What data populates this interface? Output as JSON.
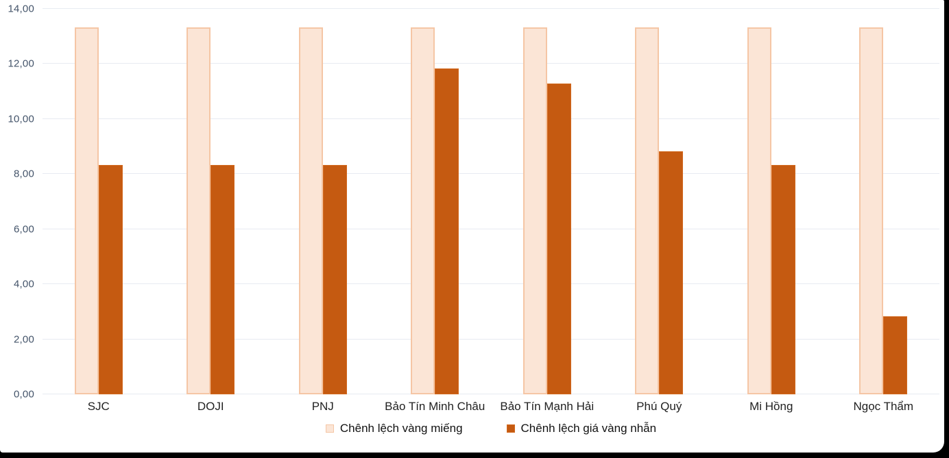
{
  "chart_data": {
    "type": "bar",
    "categories": [
      "SJC",
      "DOJI",
      "PNJ",
      "Bảo Tín Minh Châu",
      "Bảo Tín Mạnh Hải",
      "Phú Quý",
      "Mi Hồng",
      "Ngọc Thẩm"
    ],
    "series": [
      {
        "name": "Chênh lệch vàng miếng",
        "fill": "#FBE5D6",
        "border": "#F5C6A5",
        "values": [
          13.33,
          13.33,
          13.33,
          13.33,
          13.33,
          13.33,
          13.33,
          13.33
        ]
      },
      {
        "name": "Chênh lệch giá vàng nhẫn",
        "fill": "#C55A11",
        "border": "#D2691E",
        "values": [
          8.33,
          8.33,
          8.33,
          11.83,
          11.28,
          8.83,
          8.33,
          2.83
        ]
      }
    ],
    "title": "",
    "xlabel": "",
    "ylabel": "",
    "ylim": [
      0,
      14
    ],
    "yticks": {
      "values": [
        0,
        2,
        4,
        6,
        8,
        10,
        12,
        14
      ],
      "labels": [
        "0,00",
        "2,00",
        "4,00",
        "6,00",
        "8,00",
        "10,00",
        "12,00",
        "14,00"
      ]
    },
    "grid": true,
    "legend_position": "bottom"
  },
  "colors": {
    "frame_background": "#000000",
    "panel_background": "#FFFFFF",
    "gridline": "#E7EBF1",
    "ytick_text": "#44546A",
    "category_text": "#212121",
    "legend_text": "#111111"
  }
}
